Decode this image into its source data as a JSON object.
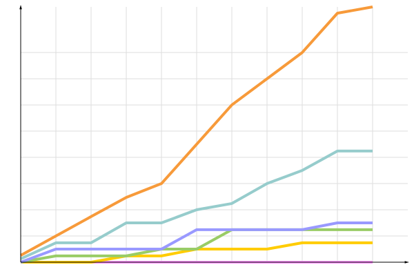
{
  "chart_data": {
    "type": "line",
    "x": [
      0,
      1,
      2,
      3,
      4,
      5,
      6,
      7,
      8,
      9,
      10
    ],
    "xlim": [
      0,
      11
    ],
    "ylim": [
      0,
      9.74
    ],
    "xticks": [
      1,
      2,
      3,
      4,
      5,
      6,
      7,
      8,
      9,
      10
    ],
    "yticks": [
      1,
      2,
      3,
      4,
      5,
      6,
      7,
      8
    ],
    "grid": true,
    "series": [
      {
        "color": "#ff99ff",
        "values": [
          0,
          0,
          0,
          0,
          0,
          0,
          0,
          0,
          0,
          0,
          0
        ]
      },
      {
        "color": "#ffcc00",
        "values": [
          0,
          0,
          0,
          0.24,
          0.24,
          0.5,
          0.5,
          0.5,
          0.74,
          0.74,
          0.74
        ]
      },
      {
        "color": "#99cc66",
        "values": [
          0,
          0.24,
          0.24,
          0.24,
          0.5,
          0.5,
          1.24,
          1.24,
          1.24,
          1.24,
          1.24
        ]
      },
      {
        "color": "#9999ff",
        "values": [
          0,
          0.5,
          0.5,
          0.5,
          0.5,
          1.24,
          1.24,
          1.24,
          1.24,
          1.5,
          1.5
        ]
      },
      {
        "color": "#96cccc",
        "values": [
          0.13,
          0.74,
          0.74,
          1.5,
          1.5,
          2,
          2.24,
          3,
          3.5,
          4.24,
          4.24
        ]
      },
      {
        "color": "#f79a3a",
        "values": [
          0.26,
          1,
          1.74,
          2.47,
          3,
          4.5,
          6,
          7,
          8,
          9.5,
          9.74
        ]
      }
    ]
  }
}
